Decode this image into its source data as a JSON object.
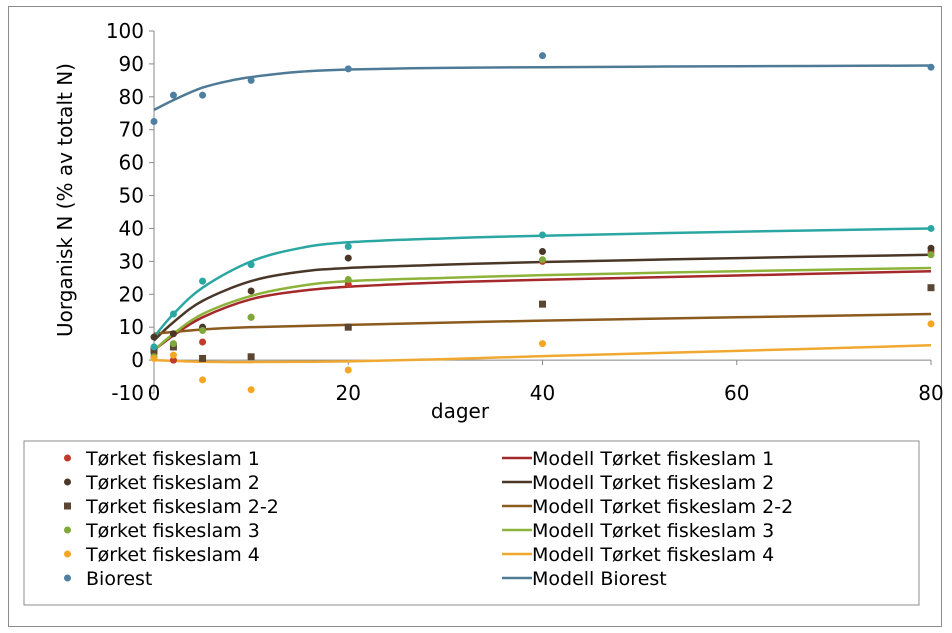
{
  "chart_data": {
    "type": "scatter",
    "xlabel": "dager",
    "ylabel": "Uorganisk N (% av totalt N)",
    "xlim": [
      0,
      80
    ],
    "ylim": [
      -10,
      100
    ],
    "xticks": [
      "0",
      "20",
      "40",
      "60",
      "80"
    ],
    "yticks": [
      "-10",
      "0",
      "10",
      "20",
      "30",
      "40",
      "50",
      "60",
      "70",
      "80",
      "90",
      "100"
    ],
    "grid": false,
    "legend_position": "bottom",
    "series": [
      {
        "name": "Tørket fiskeslam 1",
        "kind": "points",
        "marker": "circle",
        "color": "#c0392b",
        "x": [
          0,
          2,
          5,
          10,
          20,
          40,
          80
        ],
        "y": [
          2,
          0,
          5.5,
          13,
          23,
          30,
          33
        ]
      },
      {
        "name": "Modell Tørket fiskeslam 1",
        "kind": "line",
        "color": "#a5282a",
        "x": [
          0,
          2,
          5,
          10,
          15,
          20,
          30,
          40,
          60,
          80
        ],
        "y": [
          3,
          7.5,
          13,
          18.5,
          21,
          22.3,
          23.6,
          24.4,
          25.7,
          27
        ]
      },
      {
        "name": "Tørket fiskeslam 2",
        "kind": "points",
        "marker": "circle",
        "color": "#4a3728",
        "x": [
          0,
          2,
          5,
          10,
          20,
          40,
          80
        ],
        "y": [
          7,
          8,
          10,
          21,
          31,
          33,
          34
        ]
      },
      {
        "name": "Modell Tørket fiskeslam 2",
        "kind": "line",
        "color": "#4a3728",
        "x": [
          0,
          2,
          5,
          10,
          15,
          20,
          30,
          40,
          60,
          80
        ],
        "y": [
          6,
          11.5,
          18,
          24,
          26.8,
          28,
          29,
          29.8,
          31,
          32
        ]
      },
      {
        "name": "Tørket fiskeslam 2-2",
        "kind": "points",
        "marker": "square",
        "color": "#5a4633",
        "x": [
          0,
          2,
          5,
          10,
          20,
          40,
          80
        ],
        "y": [
          3,
          4,
          0.5,
          1,
          10,
          17,
          22
        ]
      },
      {
        "name": "Modell Tørket fiskeslam 2-2",
        "kind": "line",
        "color": "#8b5a1e",
        "x": [
          0,
          5,
          10,
          20,
          40,
          60,
          80
        ],
        "y": [
          8,
          9.3,
          10,
          10.7,
          12,
          13,
          14
        ]
      },
      {
        "name": "Tørket fiskeslam 3",
        "kind": "points",
        "marker": "circle",
        "color": "#7fa83a",
        "x": [
          0,
          2,
          5,
          10,
          20,
          40,
          80
        ],
        "y": [
          1,
          5,
          9,
          13,
          24.5,
          30.5,
          32
        ]
      },
      {
        "name": "Modell Tørket fiskeslam 3",
        "kind": "line",
        "color": "#8db33a",
        "x": [
          0,
          2,
          5,
          10,
          15,
          20,
          30,
          40,
          60,
          80
        ],
        "y": [
          3,
          8,
          14,
          19.5,
          22.5,
          24,
          25,
          25.8,
          27,
          28
        ]
      },
      {
        "name": "Tørket fiskeslam 4",
        "kind": "points",
        "marker": "circle",
        "color": "#f5a623",
        "x": [
          0,
          2,
          5,
          10,
          20,
          40,
          80
        ],
        "y": [
          0.5,
          1.5,
          -6,
          -9,
          -3,
          5,
          11
        ]
      },
      {
        "name": "Modell Tørket fiskeslam 4",
        "kind": "line",
        "color": "#f0a830",
        "x": [
          0,
          5,
          10,
          20,
          30,
          40,
          60,
          80
        ],
        "y": [
          0,
          -0.5,
          -0.6,
          -0.4,
          0.3,
          1.2,
          2.8,
          4.5
        ]
      },
      {
        "name": "Biorest",
        "kind": "points",
        "marker": "circle",
        "color": "#4f7fa0",
        "x": [
          0,
          2,
          5,
          10,
          20,
          40,
          80
        ],
        "y": [
          72.5,
          80.5,
          80.5,
          85,
          88.5,
          92.5,
          89
        ]
      },
      {
        "name": "Modell Biorest",
        "kind": "line",
        "color": "#4f7a96",
        "x": [
          0,
          2,
          5,
          8,
          10,
          15,
          20,
          30,
          40,
          60,
          80
        ],
        "y": [
          76,
          79,
          82.8,
          85,
          86,
          87.6,
          88.3,
          88.8,
          89,
          89.3,
          89.5
        ]
      },
      {
        "name": "",
        "kind": "points",
        "marker": "circle",
        "color": "#2aa7a3",
        "x": [
          0,
          2,
          5,
          10,
          20,
          40,
          80
        ],
        "y": [
          4,
          14,
          24,
          29,
          34.5,
          38,
          40
        ]
      },
      {
        "name": "",
        "kind": "line",
        "color": "#2aa7a3",
        "x": [
          0,
          2,
          5,
          10,
          15,
          20,
          30,
          40,
          60,
          80
        ],
        "y": [
          7,
          14,
          22,
          30,
          34,
          35.8,
          37,
          37.8,
          39,
          40
        ]
      }
    ]
  }
}
